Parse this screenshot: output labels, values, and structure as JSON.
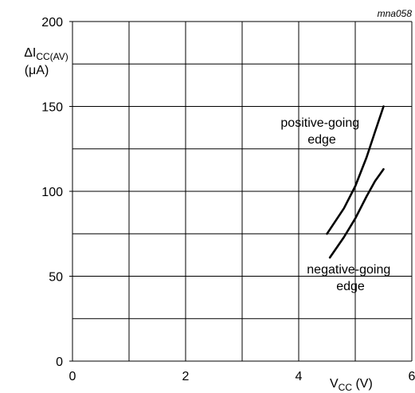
{
  "figure_id": "mna058",
  "chart_data": {
    "type": "line",
    "title": "",
    "xlabel": {
      "main": "V",
      "sub": "CC",
      "unit": " (V)"
    },
    "ylabel": {
      "prefix": "ΔI",
      "sub": "CC(AV)",
      "unit": "(μA)"
    },
    "xlim": [
      0,
      6
    ],
    "ylim": [
      0,
      200
    ],
    "x_ticks": [
      0,
      2,
      4,
      6
    ],
    "y_ticks": [
      0,
      50,
      100,
      150,
      200
    ],
    "x_grid_step": 1,
    "y_grid_step": 25,
    "grid": true,
    "legend": "none",
    "series": [
      {
        "name": "positive-going edge",
        "points": [
          [
            4.5,
            75
          ],
          [
            4.8,
            90
          ],
          [
            5.0,
            103
          ],
          [
            5.2,
            120
          ],
          [
            5.35,
            135
          ],
          [
            5.5,
            150
          ]
        ]
      },
      {
        "name": "negative-going edge",
        "points": [
          [
            4.55,
            61
          ],
          [
            4.8,
            73
          ],
          [
            5.0,
            84
          ],
          [
            5.2,
            97
          ],
          [
            5.35,
            106
          ],
          [
            5.5,
            113
          ]
        ]
      }
    ],
    "annotations": [
      {
        "lines": [
          "positive-going",
          "edge"
        ],
        "series": 0
      },
      {
        "lines": [
          "negative-going",
          "edge"
        ],
        "series": 1
      }
    ]
  }
}
